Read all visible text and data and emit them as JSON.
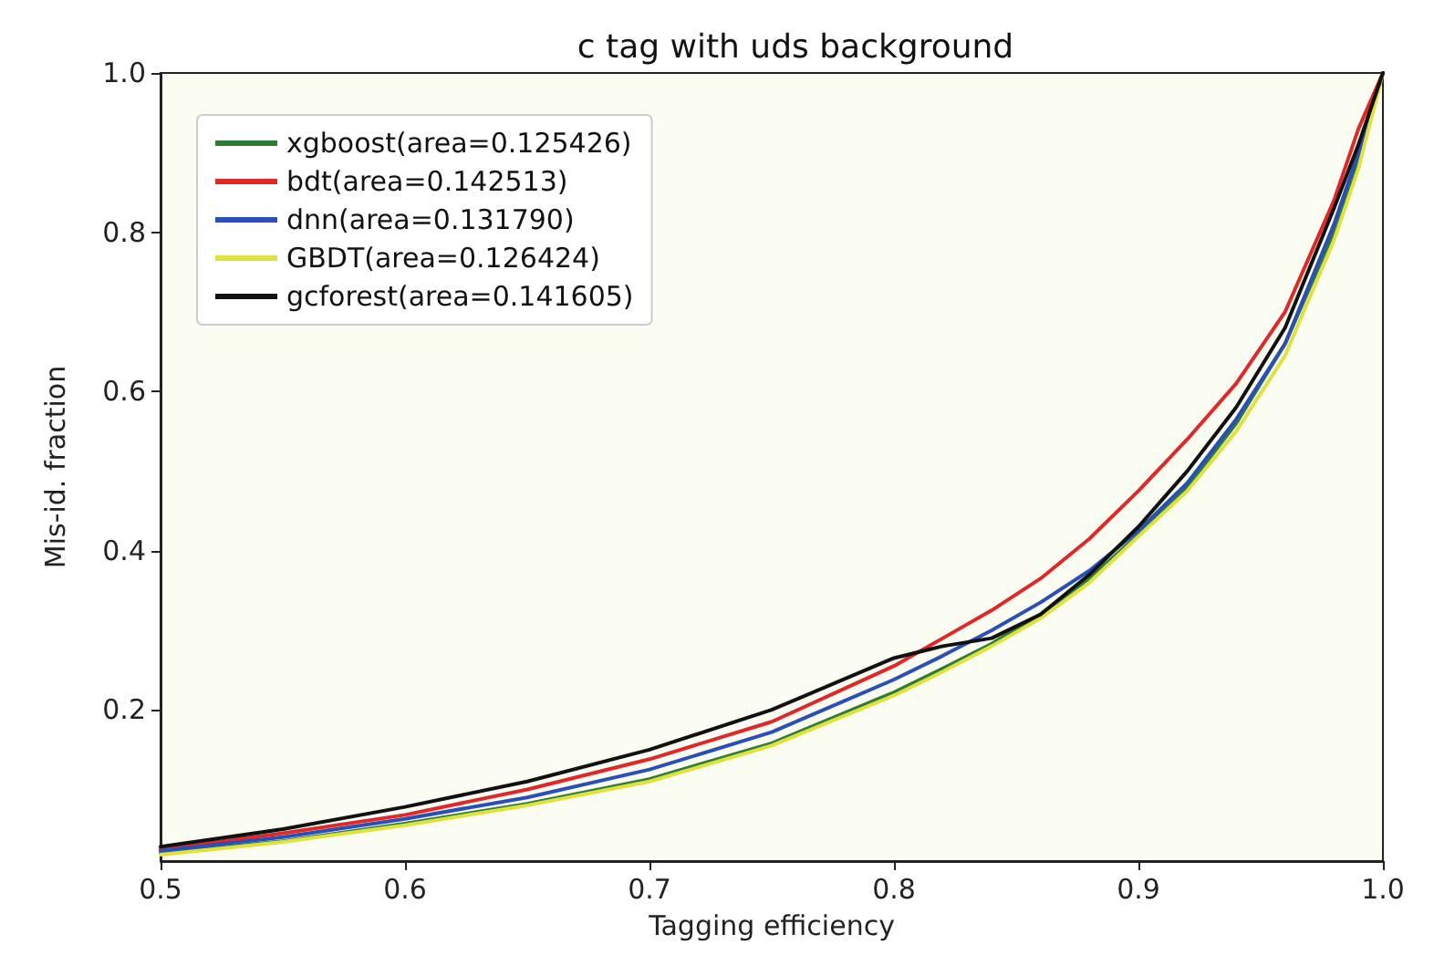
{
  "chart_data": {
    "type": "line",
    "title": "c tag with uds background",
    "xlabel": "Tagging efficiency",
    "ylabel": "Mis-id. fraction",
    "xlim": [
      0.5,
      1.0
    ],
    "ylim": [
      0.01,
      1.0
    ],
    "xticks": [
      0.5,
      0.6,
      0.7,
      0.8,
      0.9,
      {
        "value": 1,
        "label": "1.0"
      }
    ],
    "yticks": [
      0.2,
      0.4,
      0.6,
      0.8,
      {
        "value": 1,
        "label": "1.0"
      }
    ],
    "grid": false,
    "legend": "top left",
    "line_style": "solid",
    "marker": "none",
    "x": [
      0.5,
      0.55,
      0.6,
      0.65,
      0.7,
      0.75,
      0.8,
      0.82,
      0.84,
      0.86,
      0.88,
      0.9,
      0.92,
      0.94,
      0.96,
      0.98,
      0.99,
      1.0
    ],
    "series": [
      {
        "name": "xgboost(area=0.125426)",
        "color": "#2e7d32",
        "values": [
          0.02,
          0.035,
          0.057,
          0.082,
          0.113,
          0.158,
          0.222,
          0.252,
          0.283,
          0.32,
          0.365,
          0.42,
          0.48,
          0.56,
          0.66,
          0.8,
          0.89,
          1.0
        ]
      },
      {
        "name": "bdt(area=0.142513)",
        "color": "#e02828",
        "values": [
          0.025,
          0.045,
          0.068,
          0.1,
          0.138,
          0.185,
          0.255,
          0.29,
          0.325,
          0.365,
          0.415,
          0.475,
          0.54,
          0.61,
          0.7,
          0.84,
          0.93,
          1.0
        ]
      },
      {
        "name": "dnn(area=0.131790)",
        "color": "#2a4fb8",
        "values": [
          0.023,
          0.04,
          0.063,
          0.09,
          0.125,
          0.172,
          0.238,
          0.268,
          0.3,
          0.335,
          0.375,
          0.425,
          0.485,
          0.565,
          0.66,
          0.81,
          0.9,
          1.0
        ]
      },
      {
        "name": "GBDT(area=0.126424)",
        "color": "#e0e040",
        "values": [
          0.018,
          0.034,
          0.055,
          0.08,
          0.11,
          0.155,
          0.218,
          0.248,
          0.28,
          0.315,
          0.36,
          0.418,
          0.475,
          0.55,
          0.645,
          0.79,
          0.88,
          1.0
        ]
      },
      {
        "name": "gcforest(area=0.141605)",
        "color": "#111111",
        "values": [
          0.028,
          0.05,
          0.078,
          0.11,
          0.15,
          0.2,
          0.265,
          0.28,
          0.29,
          0.32,
          0.37,
          0.43,
          0.5,
          0.58,
          0.68,
          0.83,
          0.91,
          1.0
        ]
      }
    ]
  }
}
